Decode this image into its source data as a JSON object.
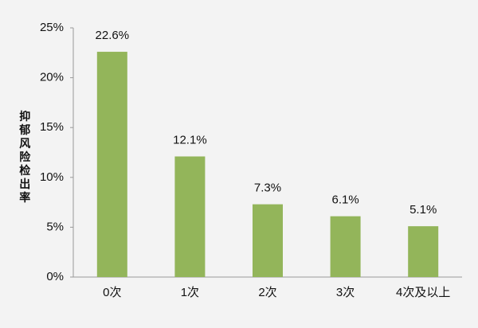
{
  "chart_data": {
    "type": "bar",
    "y_label": "抑郁风险检出率",
    "categories": [
      "0次",
      "1次",
      "2次",
      "3次",
      "4次及以上"
    ],
    "values": [
      22.6,
      12.1,
      7.3,
      6.1,
      5.1
    ],
    "value_labels": [
      "22.6%",
      "12.1%",
      "7.3%",
      "6.1%",
      "5.1%"
    ],
    "color": "#93b55a",
    "ylim": [
      0,
      25
    ],
    "yticks": [
      {
        "value": 0,
        "label": "0%"
      },
      {
        "value": 5,
        "label": "5%"
      },
      {
        "value": 10,
        "label": "10%"
      },
      {
        "value": 15,
        "label": "15%"
      },
      {
        "value": 20,
        "label": "20%"
      },
      {
        "value": 25,
        "label": "25%"
      }
    ],
    "grid": false
  }
}
